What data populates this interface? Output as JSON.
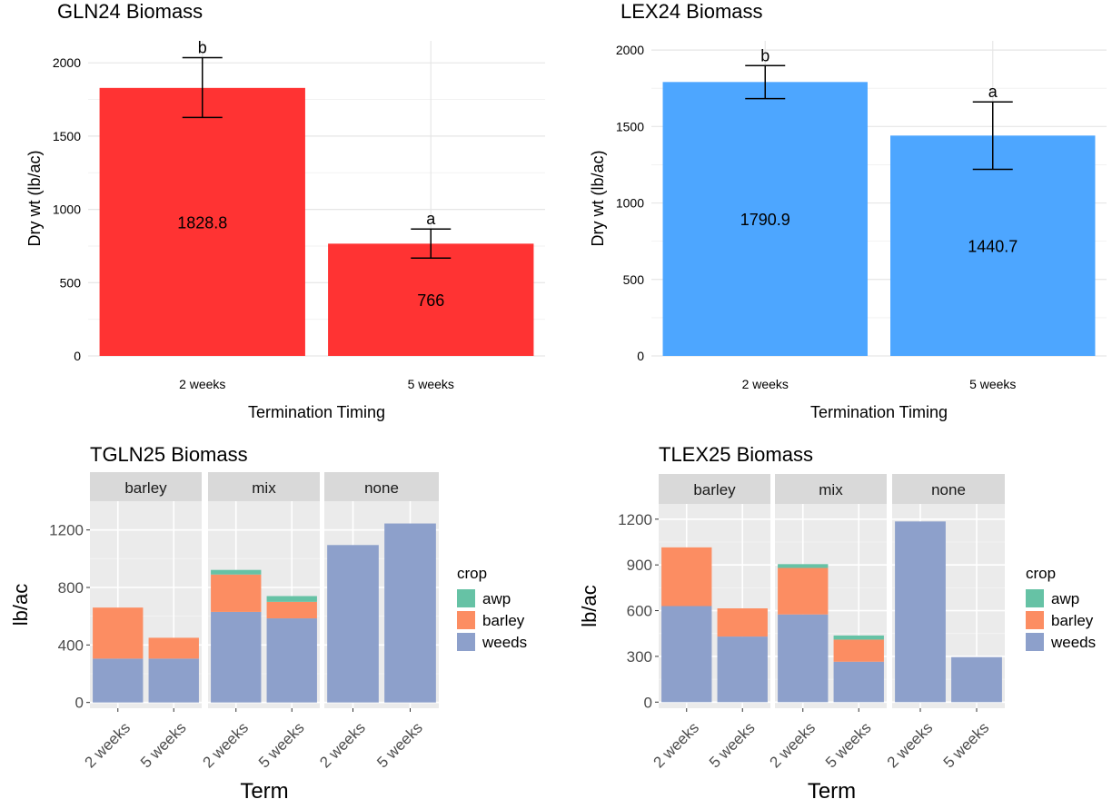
{
  "chart_data": [
    {
      "type": "bar",
      "title": "GLN24 Biomass",
      "xlabel": "Termination Timing",
      "ylabel": "Dry wt (lb/ac)",
      "categories": [
        "2 weeks",
        "5 weeks"
      ],
      "values": [
        1828.8,
        766
      ],
      "value_labels": [
        "1828.8",
        "766"
      ],
      "error_low": [
        1627,
        668
      ],
      "error_high": [
        2035,
        866
      ],
      "letters": [
        "b",
        "a"
      ],
      "ylim": [
        0,
        2150
      ],
      "yticks": [
        0,
        500,
        1000,
        1500,
        2000
      ],
      "color": "#ff3333",
      "grid": true
    },
    {
      "type": "bar",
      "title": "LEX24 Biomass",
      "xlabel": "Termination Timing",
      "ylabel": "Dry wt (lb/ac)",
      "categories": [
        "2 weeks",
        "5 weeks"
      ],
      "values": [
        1790.9,
        1440.7
      ],
      "value_labels": [
        "1790.9",
        "1440.7"
      ],
      "error_low": [
        1682,
        1220
      ],
      "error_high": [
        1898,
        1661
      ],
      "letters": [
        "b",
        "a"
      ],
      "ylim": [
        0,
        2060
      ],
      "yticks": [
        0,
        500,
        1000,
        1500,
        2000
      ],
      "color": "#4da6ff",
      "grid": true
    },
    {
      "type": "bar",
      "stacked": true,
      "faceted": true,
      "title": "TGLN25 Biomass",
      "xlabel": "Term",
      "ylabel": "lb/ac",
      "facets": [
        "barley",
        "mix",
        "none"
      ],
      "categories": [
        "2 weeks",
        "5 weeks"
      ],
      "series": [
        {
          "name": "weeds",
          "values": {
            "barley": [
              305,
              305
            ],
            "mix": [
              630,
              585
            ],
            "none": [
              1095,
              1245
            ]
          }
        },
        {
          "name": "barley",
          "values": {
            "barley": [
              355,
              145
            ],
            "mix": [
              260,
              115
            ],
            "none": [
              0,
              0
            ]
          }
        },
        {
          "name": "awp",
          "values": {
            "barley": [
              0,
              0
            ],
            "mix": [
              32,
              40
            ],
            "none": [
              0,
              0
            ]
          }
        }
      ],
      "ylim": [
        -40,
        1400
      ],
      "yticks": [
        0,
        400,
        800,
        1200
      ],
      "legend_title": "crop",
      "legend": [
        "awp",
        "barley",
        "weeds"
      ],
      "legend_position": "right",
      "grid": true
    },
    {
      "type": "bar",
      "stacked": true,
      "faceted": true,
      "title": "TLEX25 Biomass",
      "xlabel": "Term",
      "ylabel": "lb/ac",
      "facets": [
        "barley",
        "mix",
        "none"
      ],
      "categories": [
        "2 weeks",
        "5 weeks"
      ],
      "series": [
        {
          "name": "weeds",
          "values": {
            "barley": [
              630,
              430
            ],
            "mix": [
              575,
              265
            ],
            "none": [
              1185,
              295
            ]
          }
        },
        {
          "name": "barley",
          "values": {
            "barley": [
              385,
              185
            ],
            "mix": [
              305,
              145
            ],
            "none": [
              0,
              0
            ]
          }
        },
        {
          "name": "awp",
          "values": {
            "barley": [
              0,
              0
            ],
            "mix": [
              25,
              27
            ],
            "none": [
              0,
              0
            ]
          }
        }
      ],
      "ylim": [
        -40,
        1300
      ],
      "yticks": [
        0,
        300,
        600,
        900,
        1200
      ],
      "legend_title": "crop",
      "legend": [
        "awp",
        "barley",
        "weeds"
      ],
      "legend_position": "right",
      "grid": true
    }
  ],
  "colors": {
    "awp": "#66c2a5",
    "barley": "#fc8d62",
    "weeds": "#8da0cb",
    "panel_bg": "#ebebeb",
    "strip_bg": "#d9d9d9",
    "grid_light": "#ebebeb"
  }
}
